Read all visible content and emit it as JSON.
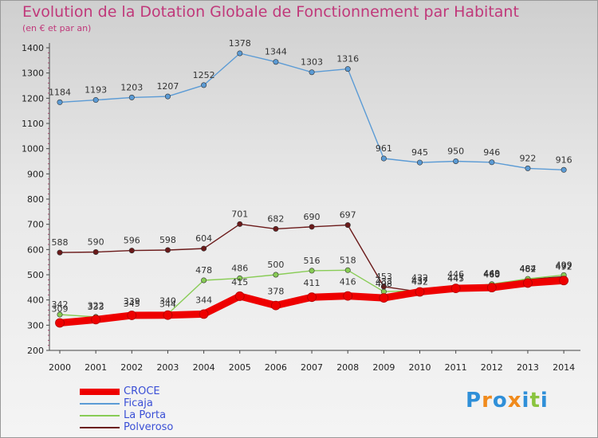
{
  "title": "Evolution de la Dotation Globale de Fonctionnement par Habitant",
  "subtitle": "(en € et par an)",
  "logo": {
    "text": "Proxiti",
    "letters": [
      "P",
      "r",
      "o",
      "x",
      "i",
      "t",
      "i"
    ],
    "colors": [
      "#2f8fd8",
      "#f08a1c",
      "#2f8fd8",
      "#f08a1c",
      "#2f8fd8",
      "#8ac43f",
      "#2f8fd8"
    ]
  },
  "chart_data": {
    "type": "line",
    "title": "Evolution de la Dotation Globale de Fonctionnement par Habitant",
    "xlabel": "",
    "ylabel": "(en € et par an)",
    "ylim": [
      200,
      1400
    ],
    "yticks": [
      200,
      300,
      400,
      500,
      600,
      700,
      800,
      900,
      1000,
      1100,
      1200,
      1300,
      1400
    ],
    "x": [
      "2000",
      "2001",
      "2002",
      "2003",
      "2004",
      "2005",
      "2006",
      "2007",
      "2008",
      "2009",
      "2010",
      "2011",
      "2012",
      "2013",
      "2014"
    ],
    "series": [
      {
        "name": "CROCE",
        "color": "#ee0000",
        "values": [
          309,
          322,
          339,
          340,
          344,
          415,
          378,
          411,
          416,
          408,
          432,
          446,
          449,
          467,
          477
        ]
      },
      {
        "name": "Ficaja",
        "color": "#5b9bd5",
        "values": [
          1184,
          1193,
          1203,
          1207,
          1252,
          1378,
          1344,
          1303,
          1316,
          961,
          945,
          950,
          946,
          922,
          916
        ]
      },
      {
        "name": "La Porta",
        "color": "#88cc55",
        "values": [
          342,
          333,
          345,
          344,
          478,
          486,
          500,
          516,
          518,
          433,
          437,
          447,
          463,
          484,
          499
        ]
      },
      {
        "name": "Polveroso",
        "color": "#6b1a1a",
        "values": [
          588,
          590,
          596,
          598,
          604,
          701,
          682,
          690,
          697,
          453,
          432,
          445,
          460,
          482,
          492
        ]
      }
    ],
    "grid": false,
    "legend": "bottom-left"
  }
}
